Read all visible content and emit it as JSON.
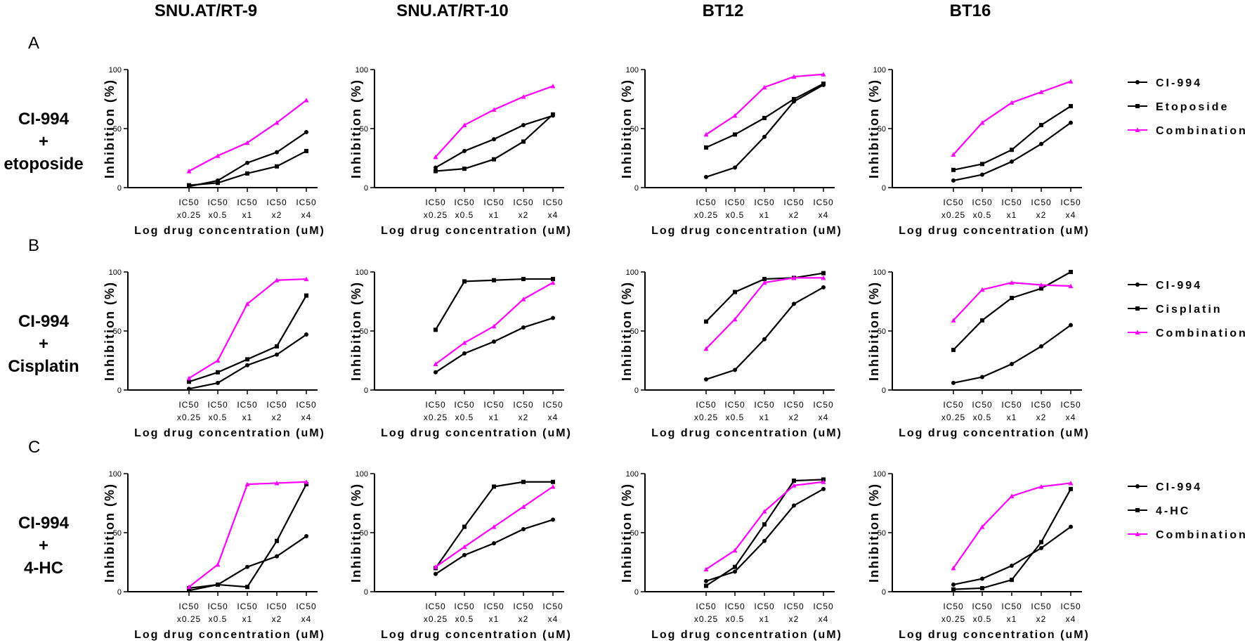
{
  "figure": {
    "columns": [
      "SNU.AT/RT-9",
      "SNU.AT/RT-10",
      "BT12",
      "BT16"
    ],
    "rows": [
      {
        "letter": "A",
        "label_lines": [
          "CI-994",
          "+",
          "etoposide"
        ],
        "legend": [
          "CI-994",
          "Etoposide",
          "Combination"
        ]
      },
      {
        "letter": "B",
        "label_lines": [
          "CI-994",
          "+",
          "Cisplatin"
        ],
        "legend": [
          "CI-994",
          "Cisplatin",
          "Combination"
        ]
      },
      {
        "letter": "C",
        "label_lines": [
          "CI-994",
          "+",
          "4-HC"
        ],
        "legend": [
          "CI-994",
          "4-HC",
          "Combination"
        ]
      }
    ]
  },
  "colors": {
    "ci994": "#000000",
    "drug": "#000000",
    "combination": "#ff00ff"
  },
  "chart_data": [
    {
      "type": "line",
      "row": "A",
      "title": "SNU.AT/RT-9",
      "ylabel": "Inhibition (%)",
      "xlabel": "Log drug concentration (uM)",
      "ylim": [
        0,
        100
      ],
      "yticks": [
        0,
        50,
        100
      ],
      "categories": [
        "IC50 x0.25",
        "IC50 x0.5",
        "IC50 x1",
        "IC50 x2",
        "IC50 x4"
      ],
      "series": [
        {
          "name": "CI-994",
          "values": [
            1,
            6,
            21,
            30,
            47
          ]
        },
        {
          "name": "Etoposide",
          "values": [
            2,
            4,
            12,
            18,
            31
          ]
        },
        {
          "name": "Combination",
          "values": [
            14,
            27,
            38,
            55,
            74
          ]
        }
      ]
    },
    {
      "type": "line",
      "row": "A",
      "title": "SNU.AT/RT-10",
      "ylabel": "Inhibition (%)",
      "xlabel": "Log drug concentration (uM)",
      "ylim": [
        0,
        100
      ],
      "yticks": [
        0,
        50,
        100
      ],
      "categories": [
        "IC50 x0.25",
        "IC50 x0.5",
        "IC50 x1",
        "IC50 x2",
        "IC50 x4"
      ],
      "series": [
        {
          "name": "CI-994",
          "values": [
            17,
            31,
            41,
            53,
            61
          ]
        },
        {
          "name": "Etoposide",
          "values": [
            14,
            16,
            24,
            39,
            62
          ]
        },
        {
          "name": "Combination",
          "values": [
            26,
            53,
            66,
            77,
            86
          ]
        }
      ]
    },
    {
      "type": "line",
      "row": "A",
      "title": "BT12",
      "ylabel": "Inhibition (%)",
      "xlabel": "Log drug concentration (uM)",
      "ylim": [
        0,
        100
      ],
      "yticks": [
        0,
        50,
        100
      ],
      "categories": [
        "IC50 x0.25",
        "IC50 x0.5",
        "IC50 x1",
        "IC50 x2",
        "IC50 x4"
      ],
      "series": [
        {
          "name": "CI-994",
          "values": [
            9,
            17,
            43,
            73,
            87
          ]
        },
        {
          "name": "Etoposide",
          "values": [
            34,
            45,
            59,
            75,
            88
          ]
        },
        {
          "name": "Combination",
          "values": [
            45,
            61,
            85,
            94,
            96
          ]
        }
      ]
    },
    {
      "type": "line",
      "row": "A",
      "title": "BT16",
      "ylabel": "Inhibition (%)",
      "xlabel": "Log drug concentration (uM)",
      "ylim": [
        0,
        100
      ],
      "yticks": [
        0,
        50,
        100
      ],
      "categories": [
        "IC50 x0.25",
        "IC50 x0.5",
        "IC50 x1",
        "IC50 x2",
        "IC50 x4"
      ],
      "series": [
        {
          "name": "CI-994",
          "values": [
            6,
            11,
            22,
            37,
            55
          ]
        },
        {
          "name": "Etoposide",
          "values": [
            15,
            20,
            32,
            53,
            69
          ]
        },
        {
          "name": "Combination",
          "values": [
            28,
            55,
            72,
            81,
            90
          ]
        }
      ]
    },
    {
      "type": "line",
      "row": "B",
      "title": "SNU.AT/RT-9",
      "ylabel": "Inhibition (%)",
      "xlabel": "Log drug concentration (uM)",
      "ylim": [
        0,
        100
      ],
      "yticks": [
        0,
        50,
        100
      ],
      "categories": [
        "IC50 x0.25",
        "IC50 x0.5",
        "IC50 x1",
        "IC50 x2",
        "IC50 x4"
      ],
      "series": [
        {
          "name": "CI-994",
          "values": [
            1,
            6,
            21,
            30,
            47
          ]
        },
        {
          "name": "Cisplatin",
          "values": [
            7,
            15,
            26,
            37,
            80
          ]
        },
        {
          "name": "Combination",
          "values": [
            10,
            25,
            73,
            93,
            94
          ]
        }
      ]
    },
    {
      "type": "line",
      "row": "B",
      "title": "SNU.AT/RT-10",
      "ylabel": "Inhibition (%)",
      "xlabel": "Log drug concentration (uM)",
      "ylim": [
        0,
        100
      ],
      "yticks": [
        0,
        50,
        100
      ],
      "categories": [
        "IC50 x0.25",
        "IC50 x0.5",
        "IC50 x1",
        "IC50 x2",
        "IC50 x4"
      ],
      "series": [
        {
          "name": "CI-994",
          "values": [
            15,
            31,
            41,
            53,
            61
          ]
        },
        {
          "name": "Cisplatin",
          "values": [
            51,
            92,
            93,
            94,
            94
          ]
        },
        {
          "name": "Combination",
          "values": [
            22,
            40,
            54,
            77,
            91
          ]
        }
      ]
    },
    {
      "type": "line",
      "row": "B",
      "title": "BT12",
      "ylabel": "Inhibition (%)",
      "xlabel": "Log drug concentration (uM)",
      "ylim": [
        0,
        100
      ],
      "yticks": [
        0,
        50,
        100
      ],
      "categories": [
        "IC50 x0.25",
        "IC50 x0.5",
        "IC50 x1",
        "IC50 x2",
        "IC50 x4"
      ],
      "series": [
        {
          "name": "CI-994",
          "values": [
            9,
            17,
            43,
            73,
            87
          ]
        },
        {
          "name": "Cisplatin",
          "values": [
            58,
            83,
            94,
            95,
            99
          ]
        },
        {
          "name": "Combination",
          "values": [
            35,
            60,
            91,
            95,
            95
          ]
        }
      ]
    },
    {
      "type": "line",
      "row": "B",
      "title": "BT16",
      "ylabel": "Inhibition (%)",
      "xlabel": "Log drug concentration (uM)",
      "ylim": [
        0,
        100
      ],
      "yticks": [
        0,
        50,
        100
      ],
      "categories": [
        "IC50 x0.25",
        "IC50 x0.5",
        "IC50 x1",
        "IC50 x2",
        "IC50 x4"
      ],
      "series": [
        {
          "name": "CI-994",
          "values": [
            6,
            11,
            22,
            37,
            55
          ]
        },
        {
          "name": "Cisplatin",
          "values": [
            34,
            59,
            78,
            86,
            100
          ]
        },
        {
          "name": "Combination",
          "values": [
            59,
            85,
            91,
            89,
            88
          ]
        }
      ]
    },
    {
      "type": "line",
      "row": "C",
      "title": "SNU.AT/RT-9",
      "ylabel": "Inhibition (%)",
      "xlabel": "Log drug concentration (uM)",
      "ylim": [
        0,
        100
      ],
      "yticks": [
        0,
        50,
        100
      ],
      "categories": [
        "IC50 x0.25",
        "IC50 x0.5",
        "IC50 x1",
        "IC50 x2",
        "IC50 x4"
      ],
      "series": [
        {
          "name": "CI-994",
          "values": [
            1,
            6,
            21,
            30,
            47
          ]
        },
        {
          "name": "4-HC",
          "values": [
            3,
            6,
            4,
            43,
            91
          ]
        },
        {
          "name": "Combination",
          "values": [
            4,
            23,
            91,
            92,
            93
          ]
        }
      ]
    },
    {
      "type": "line",
      "row": "C",
      "title": "SNU.AT/RT-10",
      "ylabel": "Inhibition (%)",
      "xlabel": "Log drug concentration (uM)",
      "ylim": [
        0,
        100
      ],
      "yticks": [
        0,
        50,
        100
      ],
      "categories": [
        "IC50 x0.25",
        "IC50 x0.5",
        "IC50 x1",
        "IC50 x2",
        "IC50 x4"
      ],
      "series": [
        {
          "name": "CI-994",
          "values": [
            15,
            31,
            41,
            53,
            61
          ]
        },
        {
          "name": "4-HC",
          "values": [
            20,
            55,
            89,
            93,
            93
          ]
        },
        {
          "name": "Combination",
          "values": [
            21,
            38,
            55,
            72,
            89
          ]
        }
      ]
    },
    {
      "type": "line",
      "row": "C",
      "title": "BT12",
      "ylabel": "Inhibition (%)",
      "xlabel": "Log drug concentration (uM)",
      "ylim": [
        0,
        100
      ],
      "yticks": [
        0,
        50,
        100
      ],
      "categories": [
        "IC50 x0.25",
        "IC50 x0.5",
        "IC50 x1",
        "IC50 x2",
        "IC50 x4"
      ],
      "series": [
        {
          "name": "CI-994",
          "values": [
            9,
            17,
            43,
            73,
            87
          ]
        },
        {
          "name": "4-HC",
          "values": [
            5,
            21,
            57,
            94,
            95
          ]
        },
        {
          "name": "Combination",
          "values": [
            19,
            35,
            68,
            90,
            93
          ]
        }
      ]
    },
    {
      "type": "line",
      "row": "C",
      "title": "BT16",
      "ylabel": "Inhibition (%)",
      "xlabel": "Log drug concentration (uM)",
      "ylim": [
        0,
        100
      ],
      "yticks": [
        0,
        50,
        100
      ],
      "categories": [
        "IC50 x0.25",
        "IC50 x0.5",
        "IC50 x1",
        "IC50 x2",
        "IC50 x4"
      ],
      "series": [
        {
          "name": "CI-994",
          "values": [
            6,
            11,
            22,
            37,
            55
          ]
        },
        {
          "name": "4-HC",
          "values": [
            2,
            3,
            10,
            42,
            87
          ]
        },
        {
          "name": "Combination",
          "values": [
            20,
            55,
            81,
            89,
            92
          ]
        }
      ]
    }
  ]
}
